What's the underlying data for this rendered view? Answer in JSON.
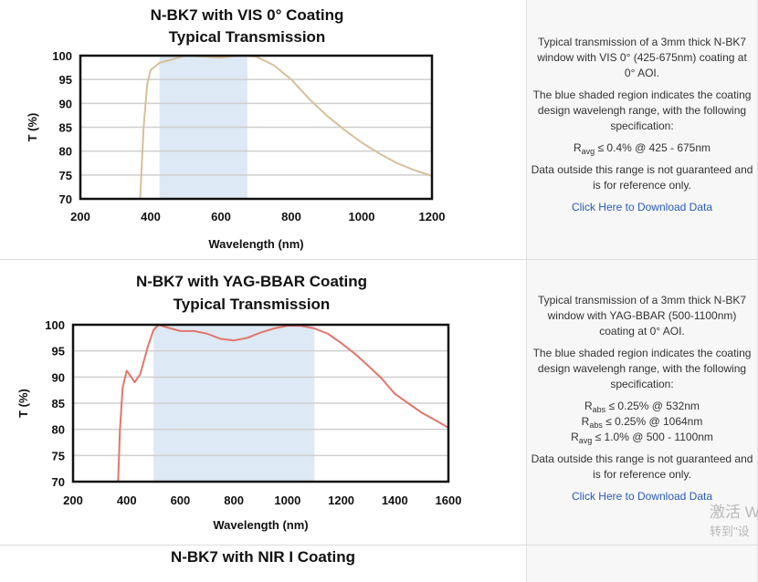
{
  "rows": [
    {
      "description": "Typical transmission of a 3mm thick N-BK7 window with VIS 0° (425-675nm) coating at 0° AOI.",
      "shaded_note": "The blue shaded region indicates the coating design wavelengh range, with the following specification:",
      "specs": [
        {
          "sym": "R",
          "sub": "avg",
          "text": "≤ 0.4% @ 425 - 675nm"
        }
      ],
      "disclaimer": "Data outside this range is not guaranteed and is for reference only.",
      "download_label": "Click Here to Download Data"
    },
    {
      "description": "Typical transmission of a 3mm thick N-BK7 window with YAG-BBAR (500-1100nm) coating at 0° AOI.",
      "shaded_note": "The blue shaded region indicates the coating design wavelengh range, with the following specification:",
      "specs": [
        {
          "sym": "R",
          "sub": "abs",
          "text": "≤ 0.25% @ 532nm"
        },
        {
          "sym": "R",
          "sub": "abs",
          "text": "≤ 0.25% @ 1064nm"
        },
        {
          "sym": "R",
          "sub": "avg",
          "text": "≤ 1.0% @ 500 - 1100nm"
        }
      ],
      "disclaimer": "Data outside this range is not guaranteed and is for reference only.",
      "download_label": "Click Here to Download Data"
    },
    {
      "title": "N-BK7 with NIR I Coating"
    }
  ],
  "watermark": {
    "line1": "激活 W",
    "line2": "转到\"设"
  },
  "chart_data": [
    {
      "type": "line",
      "title": [
        "N-BK7 with VIS 0° Coating",
        "Typical Transmission"
      ],
      "xlabel": "Wavelength (nm)",
      "ylabel": "T (%)",
      "xlim": [
        200,
        1200
      ],
      "ylim": [
        70,
        100
      ],
      "xticks": [
        200,
        400,
        600,
        800,
        1000,
        1200
      ],
      "yticks": [
        70,
        75,
        80,
        85,
        90,
        95,
        100
      ],
      "grid": true,
      "shaded_range": [
        425,
        675
      ],
      "shade_color": "#dde9f5",
      "line_color": "#d9bf98",
      "x": [
        370,
        380,
        390,
        400,
        425,
        450,
        500,
        550,
        600,
        650,
        700,
        750,
        800,
        850,
        900,
        950,
        1000,
        1050,
        1100,
        1150,
        1200
      ],
      "y": [
        70,
        85,
        94,
        97,
        98.5,
        99,
        100,
        99.8,
        99.6,
        100,
        99.8,
        98,
        95,
        91,
        87.5,
        84.5,
        81.8,
        79.5,
        77.5,
        76,
        74.8
      ]
    },
    {
      "type": "line",
      "title": [
        "N-BK7 with YAG-BBAR Coating",
        "Typical Transmission"
      ],
      "xlabel": "Wavelength (nm)",
      "ylabel": "T (%)",
      "xlim": [
        200,
        1600
      ],
      "ylim": [
        70,
        100
      ],
      "xticks": [
        200,
        400,
        600,
        800,
        1000,
        1200,
        1400,
        1600
      ],
      "yticks": [
        70,
        75,
        80,
        85,
        90,
        95,
        100
      ],
      "grid": true,
      "shaded_range": [
        500,
        1100
      ],
      "shade_color": "#dde9f5",
      "line_color": "#e2766a",
      "x": [
        368,
        375,
        385,
        400,
        410,
        430,
        450,
        480,
        500,
        520,
        550,
        600,
        650,
        700,
        750,
        800,
        850,
        900,
        950,
        1000,
        1050,
        1100,
        1150,
        1200,
        1250,
        1300,
        1350,
        1400,
        1450,
        1500,
        1550,
        1600
      ],
      "y": [
        70,
        80,
        88,
        91.2,
        90.5,
        89,
        90.5,
        96,
        99,
        100,
        99.5,
        98.8,
        98.8,
        98.3,
        97.3,
        97,
        97.5,
        98.5,
        99.3,
        99.8,
        99.8,
        99.3,
        98.3,
        96.5,
        94.5,
        92.2,
        89.8,
        86.8,
        85,
        83.2,
        81.8,
        80.3
      ]
    }
  ]
}
